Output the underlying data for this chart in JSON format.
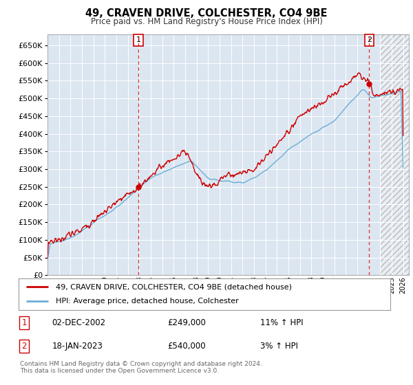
{
  "title": "49, CRAVEN DRIVE, COLCHESTER, CO4 9BE",
  "subtitle": "Price paid vs. HM Land Registry's House Price Index (HPI)",
  "ylim": [
    0,
    680000
  ],
  "yticks": [
    0,
    50000,
    100000,
    150000,
    200000,
    250000,
    300000,
    350000,
    400000,
    450000,
    500000,
    550000,
    600000,
    650000
  ],
  "plot_bg_color": "#dce6f1",
  "hpi_color": "#6aaed6",
  "price_color": "#cc0000",
  "legend_label_price": "49, CRAVEN DRIVE, COLCHESTER, CO4 9BE (detached house)",
  "legend_label_hpi": "HPI: Average price, detached house, Colchester",
  "marker1_date": "02-DEC-2002",
  "marker1_price": "£249,000",
  "marker1_hpi": "11% ↑ HPI",
  "marker1_year": 2002.92,
  "marker1_value": 249000,
  "marker2_date": "18-JAN-2023",
  "marker2_price": "£540,000",
  "marker2_hpi": "3% ↑ HPI",
  "marker2_year": 2023.05,
  "marker2_value": 540000,
  "footnote": "Contains HM Land Registry data © Crown copyright and database right 2024.\nThis data is licensed under the Open Government Licence v3.0."
}
